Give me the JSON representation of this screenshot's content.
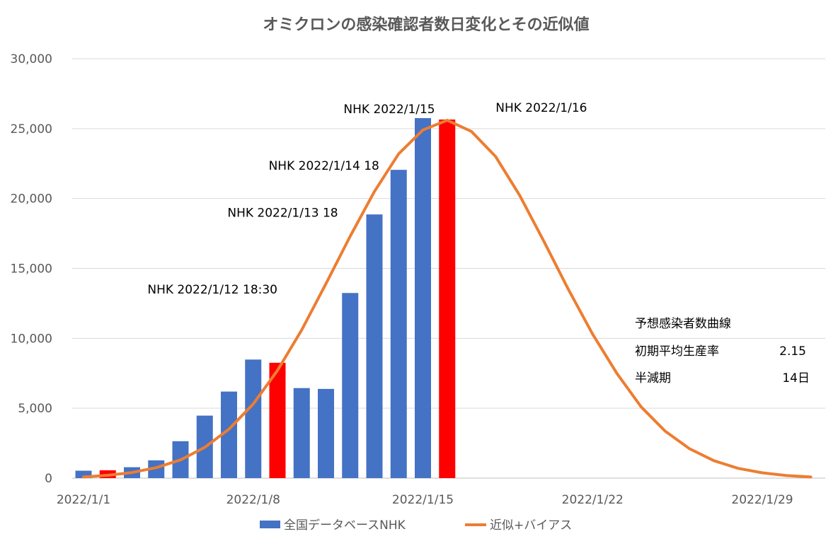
{
  "chart_data": {
    "type": "bar",
    "title": "オミクロンの感染確認者数日変化とその近似値",
    "x_axis": {
      "start": "2022/1/1",
      "num_days": 31,
      "tick_labels": [
        {
          "day_index": 0,
          "label": "2022/1/1"
        },
        {
          "day_index": 7,
          "label": "2022/1/8"
        },
        {
          "day_index": 14,
          "label": "2022/1/15"
        },
        {
          "day_index": 21,
          "label": "2022/1/22"
        },
        {
          "day_index": 28,
          "label": "2022/1/29"
        }
      ]
    },
    "y_axis": {
      "ylim": [
        0,
        30000
      ],
      "ticks": [
        0,
        5000,
        10000,
        15000,
        20000,
        25000,
        30000
      ],
      "tick_labels": [
        "0",
        "5,000",
        "10,000",
        "15,000",
        "20,000",
        "25,000",
        "30,000"
      ],
      "grid": true
    },
    "series": [
      {
        "name": "全国データベースNHK",
        "type": "bar",
        "color": "#4472C4",
        "highlight_color": "#FF0000",
        "points": [
          {
            "day_index": 0,
            "value": 530,
            "highlight": false
          },
          {
            "day_index": 1,
            "value": 560,
            "highlight": true
          },
          {
            "day_index": 2,
            "value": 780,
            "highlight": false
          },
          {
            "day_index": 3,
            "value": 1270,
            "highlight": false
          },
          {
            "day_index": 4,
            "value": 2640,
            "highlight": false
          },
          {
            "day_index": 5,
            "value": 4470,
            "highlight": false
          },
          {
            "day_index": 6,
            "value": 6190,
            "highlight": false
          },
          {
            "day_index": 7,
            "value": 8480,
            "highlight": false
          },
          {
            "day_index": 8,
            "value": 8250,
            "highlight": true
          },
          {
            "day_index": 9,
            "value": 6440,
            "highlight": false
          },
          {
            "day_index": 10,
            "value": 6380,
            "highlight": false
          },
          {
            "day_index": 11,
            "value": 13240,
            "highlight": false
          },
          {
            "day_index": 12,
            "value": 18860,
            "highlight": false
          },
          {
            "day_index": 13,
            "value": 22050,
            "highlight": false
          },
          {
            "day_index": 14,
            "value": 25750,
            "highlight": false
          },
          {
            "day_index": 15,
            "value": 25650,
            "highlight": true
          }
        ]
      },
      {
        "name": "近似+バイアス",
        "type": "line",
        "color": "#ED7D31",
        "points": [
          {
            "day_index": 0,
            "value": 80
          },
          {
            "day_index": 1,
            "value": 200
          },
          {
            "day_index": 2,
            "value": 400
          },
          {
            "day_index": 3,
            "value": 750
          },
          {
            "day_index": 4,
            "value": 1300
          },
          {
            "day_index": 5,
            "value": 2200
          },
          {
            "day_index": 6,
            "value": 3500
          },
          {
            "day_index": 7,
            "value": 5300
          },
          {
            "day_index": 8,
            "value": 7700
          },
          {
            "day_index": 9,
            "value": 10600
          },
          {
            "day_index": 10,
            "value": 13900
          },
          {
            "day_index": 11,
            "value": 17300
          },
          {
            "day_index": 12,
            "value": 20500
          },
          {
            "day_index": 13,
            "value": 23200
          },
          {
            "day_index": 14,
            "value": 24900
          },
          {
            "day_index": 15,
            "value": 25600
          },
          {
            "day_index": 16,
            "value": 24800
          },
          {
            "day_index": 17,
            "value": 23000
          },
          {
            "day_index": 18,
            "value": 20200
          },
          {
            "day_index": 19,
            "value": 16900
          },
          {
            "day_index": 20,
            "value": 13500
          },
          {
            "day_index": 21,
            "value": 10300
          },
          {
            "day_index": 22,
            "value": 7500
          },
          {
            "day_index": 23,
            "value": 5100
          },
          {
            "day_index": 24,
            "value": 3350
          },
          {
            "day_index": 25,
            "value": 2100
          },
          {
            "day_index": 26,
            "value": 1250
          },
          {
            "day_index": 27,
            "value": 700
          },
          {
            "day_index": 28,
            "value": 380
          },
          {
            "day_index": 29,
            "value": 180
          },
          {
            "day_index": 30,
            "value": 80
          }
        ]
      }
    ],
    "annotations": [
      {
        "text": "NHK 2022/1/12 18:30",
        "day_index": 8,
        "value": 13200,
        "anchor": "end"
      },
      {
        "text": "NHK 2022/1/13  18",
        "day_index": 10.5,
        "value": 18700,
        "anchor": "end"
      },
      {
        "text": "NHK 2022/1/14 18",
        "day_index": 12.2,
        "value": 22050,
        "anchor": "end"
      },
      {
        "text": "NHK 2022/1/15",
        "day_index": 14.5,
        "value": 26100,
        "anchor": "end"
      },
      {
        "text": "NHK  2022/1/16",
        "day_index": 17.0,
        "value": 26200,
        "anchor": "start"
      }
    ],
    "info_box": {
      "title": "予想感染者数曲線",
      "rows": [
        {
          "label": "初期平均生産率",
          "value": "2.15"
        },
        {
          "label": "半減期",
          "value": "14日"
        }
      ]
    },
    "legend": {
      "position": "bottom",
      "entries": [
        {
          "label": "全国データベースNHK",
          "marker": "rect",
          "color": "#4472C4"
        },
        {
          "label": "近似+バイアス",
          "marker": "line",
          "color": "#ED7D31"
        }
      ]
    }
  }
}
